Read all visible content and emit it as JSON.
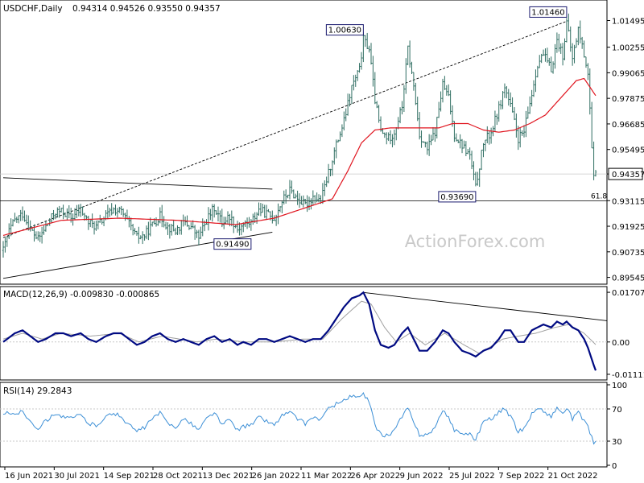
{
  "header": {
    "symbol": "USDCHF,Daily",
    "ohlc": "0.94314 0.94526 0.93550 0.94357"
  },
  "watermark": "ActionForex.com",
  "colors": {
    "price_bar": "#2f6e62",
    "ma": "#e0141e",
    "macd": "#000a82",
    "macd_signal": "#a0a0a0",
    "rsi": "#3c8fd6",
    "trendline": "#000000",
    "grid": "#c8c8c8",
    "label_box_border": "#1a1a6e"
  },
  "chart_data": [
    {
      "type": "line",
      "panel": "price",
      "series_desc": "USDCHF daily price bars with moving average",
      "ylim": [
        0.8938,
        1.023
      ],
      "y_ticks": [
        "1.01495",
        "1.00255",
        "0.99065",
        "0.97875",
        "0.96685",
        "0.95495",
        "0.94357",
        "0.93115",
        "0.91925",
        "0.90735",
        "0.89545"
      ],
      "y_tick_values": [
        1.01495,
        1.00255,
        0.99065,
        0.97875,
        0.96685,
        0.95495,
        0.94357,
        0.93115,
        0.91925,
        0.90735,
        0.89545
      ],
      "x_labels": [
        "16 Jun 2021",
        "30 Jul 2021",
        "14 Sep 2021",
        "28 Oct 2021",
        "13 Dec 2021",
        "26 Jan 2022",
        "11 Mar 2022",
        "26 Apr 2022",
        "9 Jun 2022",
        "25 Jul 2022",
        "7 Sep 2022",
        "21 Oct 2022"
      ],
      "price_keypoints": [
        [
          0,
          0.908
        ],
        [
          3,
          0.917
        ],
        [
          6,
          0.922
        ],
        [
          10,
          0.925
        ],
        [
          14,
          0.918
        ],
        [
          18,
          0.913
        ],
        [
          22,
          0.919
        ],
        [
          27,
          0.926
        ],
        [
          31,
          0.926
        ],
        [
          35,
          0.923
        ],
        [
          40,
          0.927
        ],
        [
          44,
          0.921
        ],
        [
          48,
          0.919
        ],
        [
          53,
          0.924
        ],
        [
          57,
          0.927
        ],
        [
          61,
          0.926
        ],
        [
          65,
          0.92
        ],
        [
          69,
          0.914
        ],
        [
          73,
          0.915
        ],
        [
          77,
          0.92
        ],
        [
          81,
          0.924
        ],
        [
          85,
          0.919
        ],
        [
          89,
          0.917
        ],
        [
          93,
          0.921
        ],
        [
          97,
          0.919
        ],
        [
          101,
          0.914
        ],
        [
          105,
          0.922
        ],
        [
          109,
          0.928
        ],
        [
          113,
          0.921
        ],
        [
          117,
          0.924
        ],
        [
          121,
          0.918
        ],
        [
          124,
          0.92
        ],
        [
          128,
          0.921
        ],
        [
          132,
          0.927
        ],
        [
          136,
          0.925
        ],
        [
          140,
          0.923
        ],
        [
          144,
          0.931
        ],
        [
          148,
          0.936
        ],
        [
          152,
          0.932
        ],
        [
          156,
          0.929
        ],
        [
          160,
          0.933
        ],
        [
          164,
          0.931
        ],
        [
          168,
          0.944
        ],
        [
          172,
          0.957
        ],
        [
          176,
          0.968
        ],
        [
          180,
          0.984
        ],
        [
          184,
          0.992
        ],
        [
          186,
          1.006
        ],
        [
          189,
          1.002
        ],
        [
          192,
          0.978
        ],
        [
          195,
          0.963
        ],
        [
          199,
          0.96
        ],
        [
          202,
          0.963
        ],
        [
          206,
          0.975
        ],
        [
          209,
          1.002
        ],
        [
          212,
          0.984
        ],
        [
          215,
          0.962
        ],
        [
          219,
          0.955
        ],
        [
          223,
          0.963
        ],
        [
          227,
          0.985
        ],
        [
          230,
          0.979
        ],
        [
          233,
          0.962
        ],
        [
          237,
          0.957
        ],
        [
          241,
          0.952
        ],
        [
          244,
          0.937
        ],
        [
          248,
          0.958
        ],
        [
          252,
          0.963
        ],
        [
          256,
          0.974
        ],
        [
          259,
          0.984
        ],
        [
          262,
          0.975
        ],
        [
          266,
          0.96
        ],
        [
          269,
          0.963
        ],
        [
          273,
          0.981
        ],
        [
          276,
          0.995
        ],
        [
          279,
          0.999
        ],
        [
          283,
          0.992
        ],
        [
          286,
          1.006
        ],
        [
          289,
          0.999
        ],
        [
          291,
          1.014
        ],
        [
          294,
          0.997
        ],
        [
          297,
          1.011
        ],
        [
          300,
          0.999
        ],
        [
          302,
          0.991
        ],
        [
          303,
          0.974
        ],
        [
          304,
          0.955
        ],
        [
          305,
          0.941
        ],
        [
          306,
          0.943
        ]
      ],
      "ma_keypoints": [
        [
          0,
          0.915
        ],
        [
          30,
          0.922
        ],
        [
          60,
          0.923
        ],
        [
          90,
          0.922
        ],
        [
          120,
          0.92
        ],
        [
          140,
          0.923
        ],
        [
          160,
          0.929
        ],
        [
          170,
          0.932
        ],
        [
          178,
          0.945
        ],
        [
          185,
          0.958
        ],
        [
          192,
          0.964
        ],
        [
          200,
          0.965
        ],
        [
          212,
          0.965
        ],
        [
          225,
          0.965
        ],
        [
          232,
          0.967
        ],
        [
          240,
          0.967
        ],
        [
          248,
          0.964
        ],
        [
          256,
          0.963
        ],
        [
          264,
          0.964
        ],
        [
          272,
          0.967
        ],
        [
          280,
          0.971
        ],
        [
          288,
          0.979
        ],
        [
          296,
          0.987
        ],
        [
          300,
          0.988
        ],
        [
          306,
          0.98
        ]
      ],
      "annotations": [
        {
          "label": "1.00630",
          "bar": 186,
          "price": 1.0063,
          "position": "above"
        },
        {
          "label": "1.01460",
          "bar": 291,
          "price": 1.0146,
          "position": "above"
        },
        {
          "label": "0.93690",
          "bar": 244,
          "price": 0.9369,
          "position": "below"
        },
        {
          "label": "0.91490",
          "bar": 128,
          "price": 0.9149,
          "position": "below"
        },
        {
          "label": "61.8",
          "bar": 306,
          "price": 0.9311,
          "position": "below-right"
        }
      ],
      "last_price": "0.94357",
      "horizontal_levels": [
        0.9311,
        0.94357
      ],
      "trendlines": [
        {
          "style": "solid",
          "from": [
            0,
            0.9418
          ],
          "to": [
            139,
            0.9365
          ]
        },
        {
          "style": "solid",
          "from": [
            0,
            0.895
          ],
          "to": [
            139,
            0.9165
          ]
        },
        {
          "style": "dashed",
          "from": [
            0,
            0.914
          ],
          "to": [
            291,
            1.0146
          ]
        }
      ]
    },
    {
      "type": "line",
      "panel": "macd",
      "title": "MACD(12,26,9) -0.009830 -0.000865",
      "y_ticks": [
        "0.01707",
        "0.00",
        "-0.011111"
      ],
      "y_tick_values": [
        0.01707,
        0.0,
        -0.011111
      ],
      "ylim": [
        -0.0125,
        0.0182
      ],
      "macd_keypoints": [
        [
          0,
          0.0
        ],
        [
          6,
          0.003
        ],
        [
          10,
          0.004
        ],
        [
          14,
          0.002
        ],
        [
          18,
          0.0
        ],
        [
          22,
          0.001
        ],
        [
          27,
          0.003
        ],
        [
          31,
          0.003
        ],
        [
          35,
          0.002
        ],
        [
          40,
          0.003
        ],
        [
          44,
          0.001
        ],
        [
          48,
          0.0
        ],
        [
          53,
          0.002
        ],
        [
          57,
          0.003
        ],
        [
          61,
          0.003
        ],
        [
          65,
          0.001
        ],
        [
          69,
          -0.001
        ],
        [
          73,
          0.0
        ],
        [
          77,
          0.002
        ],
        [
          81,
          0.003
        ],
        [
          85,
          0.001
        ],
        [
          89,
          0.0
        ],
        [
          93,
          0.001
        ],
        [
          97,
          0.0
        ],
        [
          101,
          -0.001
        ],
        [
          105,
          0.001
        ],
        [
          109,
          0.002
        ],
        [
          113,
          0.0
        ],
        [
          117,
          0.001
        ],
        [
          121,
          -0.001
        ],
        [
          124,
          0.0
        ],
        [
          128,
          -0.001
        ],
        [
          132,
          0.001
        ],
        [
          136,
          0.001
        ],
        [
          140,
          0.0
        ],
        [
          144,
          0.001
        ],
        [
          148,
          0.002
        ],
        [
          152,
          0.001
        ],
        [
          156,
          0.0
        ],
        [
          160,
          0.001
        ],
        [
          164,
          0.001
        ],
        [
          168,
          0.004
        ],
        [
          172,
          0.008
        ],
        [
          176,
          0.012
        ],
        [
          180,
          0.015
        ],
        [
          184,
          0.016
        ],
        [
          186,
          0.017
        ],
        [
          189,
          0.013
        ],
        [
          192,
          0.004
        ],
        [
          195,
          -0.001
        ],
        [
          199,
          -0.002
        ],
        [
          202,
          -0.001
        ],
        [
          206,
          0.003
        ],
        [
          209,
          0.005
        ],
        [
          212,
          0.001
        ],
        [
          215,
          -0.003
        ],
        [
          219,
          -0.003
        ],
        [
          223,
          0.0
        ],
        [
          227,
          0.004
        ],
        [
          230,
          0.003
        ],
        [
          233,
          0.0
        ],
        [
          237,
          -0.003
        ],
        [
          241,
          -0.004
        ],
        [
          244,
          -0.005
        ],
        [
          248,
          -0.003
        ],
        [
          252,
          -0.002
        ],
        [
          256,
          0.001
        ],
        [
          259,
          0.004
        ],
        [
          262,
          0.004
        ],
        [
          266,
          0.0
        ],
        [
          269,
          0.0
        ],
        [
          273,
          0.004
        ],
        [
          276,
          0.005
        ],
        [
          279,
          0.006
        ],
        [
          283,
          0.005
        ],
        [
          286,
          0.007
        ],
        [
          289,
          0.006
        ],
        [
          291,
          0.007
        ],
        [
          294,
          0.005
        ],
        [
          297,
          0.004
        ],
        [
          300,
          0.001
        ],
        [
          302,
          -0.002
        ],
        [
          303,
          -0.004
        ],
        [
          304,
          -0.006
        ],
        [
          305,
          -0.008
        ],
        [
          306,
          -0.0098
        ]
      ],
      "signal_keypoints": [
        [
          0,
          0.001
        ],
        [
          10,
          0.003
        ],
        [
          20,
          0.001
        ],
        [
          30,
          0.003
        ],
        [
          45,
          0.002
        ],
        [
          60,
          0.003
        ],
        [
          70,
          0.0
        ],
        [
          82,
          0.002
        ],
        [
          100,
          0.0
        ],
        [
          110,
          0.001
        ],
        [
          125,
          0.0
        ],
        [
          140,
          0.0
        ],
        [
          155,
          0.001
        ],
        [
          165,
          0.001
        ],
        [
          175,
          0.008
        ],
        [
          185,
          0.014
        ],
        [
          190,
          0.013
        ],
        [
          197,
          0.005
        ],
        [
          203,
          0.0
        ],
        [
          210,
          0.003
        ],
        [
          218,
          -0.001
        ],
        [
          228,
          0.003
        ],
        [
          238,
          -0.001
        ],
        [
          246,
          -0.004
        ],
        [
          258,
          0.001
        ],
        [
          266,
          0.002
        ],
        [
          275,
          0.003
        ],
        [
          285,
          0.005
        ],
        [
          292,
          0.006
        ],
        [
          300,
          0.003
        ],
        [
          306,
          -0.0009
        ]
      ],
      "trendline": {
        "from": [
          186,
          0.017
        ],
        "to": [
          306,
          0.0073
        ]
      }
    },
    {
      "type": "line",
      "panel": "rsi",
      "title": "RSI(14) 29.2843",
      "y_ticks": [
        "100",
        "70",
        "30",
        "0"
      ],
      "y_tick_values": [
        100,
        70,
        30,
        0
      ],
      "ylim": [
        0,
        100
      ],
      "rsi_keypoints": [
        [
          0,
          62
        ],
        [
          3,
          66
        ],
        [
          6,
          64
        ],
        [
          10,
          67
        ],
        [
          14,
          55
        ],
        [
          18,
          46
        ],
        [
          22,
          55
        ],
        [
          27,
          65
        ],
        [
          31,
          60
        ],
        [
          35,
          58
        ],
        [
          40,
          63
        ],
        [
          44,
          52
        ],
        [
          48,
          50
        ],
        [
          53,
          60
        ],
        [
          57,
          65
        ],
        [
          61,
          60
        ],
        [
          65,
          50
        ],
        [
          69,
          42
        ],
        [
          73,
          47
        ],
        [
          77,
          58
        ],
        [
          81,
          65
        ],
        [
          85,
          52
        ],
        [
          89,
          48
        ],
        [
          93,
          57
        ],
        [
          97,
          52
        ],
        [
          101,
          44
        ],
        [
          105,
          58
        ],
        [
          109,
          66
        ],
        [
          113,
          50
        ],
        [
          117,
          57
        ],
        [
          121,
          44
        ],
        [
          124,
          48
        ],
        [
          128,
          50
        ],
        [
          132,
          60
        ],
        [
          136,
          55
        ],
        [
          140,
          50
        ],
        [
          144,
          62
        ],
        [
          148,
          66
        ],
        [
          152,
          58
        ],
        [
          156,
          52
        ],
        [
          160,
          60
        ],
        [
          164,
          57
        ],
        [
          168,
          70
        ],
        [
          172,
          76
        ],
        [
          176,
          81
        ],
        [
          180,
          86
        ],
        [
          184,
          84
        ],
        [
          186,
          88
        ],
        [
          189,
          78
        ],
        [
          192,
          50
        ],
        [
          195,
          38
        ],
        [
          199,
          37
        ],
        [
          202,
          44
        ],
        [
          206,
          60
        ],
        [
          209,
          72
        ],
        [
          212,
          52
        ],
        [
          215,
          38
        ],
        [
          219,
          38
        ],
        [
          223,
          47
        ],
        [
          227,
          67
        ],
        [
          230,
          60
        ],
        [
          233,
          44
        ],
        [
          237,
          40
        ],
        [
          241,
          38
        ],
        [
          244,
          32
        ],
        [
          248,
          55
        ],
        [
          252,
          58
        ],
        [
          256,
          66
        ],
        [
          259,
          70
        ],
        [
          262,
          60
        ],
        [
          266,
          42
        ],
        [
          269,
          46
        ],
        [
          273,
          64
        ],
        [
          276,
          70
        ],
        [
          279,
          68
        ],
        [
          283,
          60
        ],
        [
          286,
          72
        ],
        [
          289,
          64
        ],
        [
          291,
          71
        ],
        [
          294,
          58
        ],
        [
          297,
          65
        ],
        [
          300,
          56
        ],
        [
          302,
          50
        ],
        [
          303,
          40
        ],
        [
          304,
          34
        ],
        [
          305,
          29
        ],
        [
          306,
          29.3
        ]
      ]
    }
  ]
}
